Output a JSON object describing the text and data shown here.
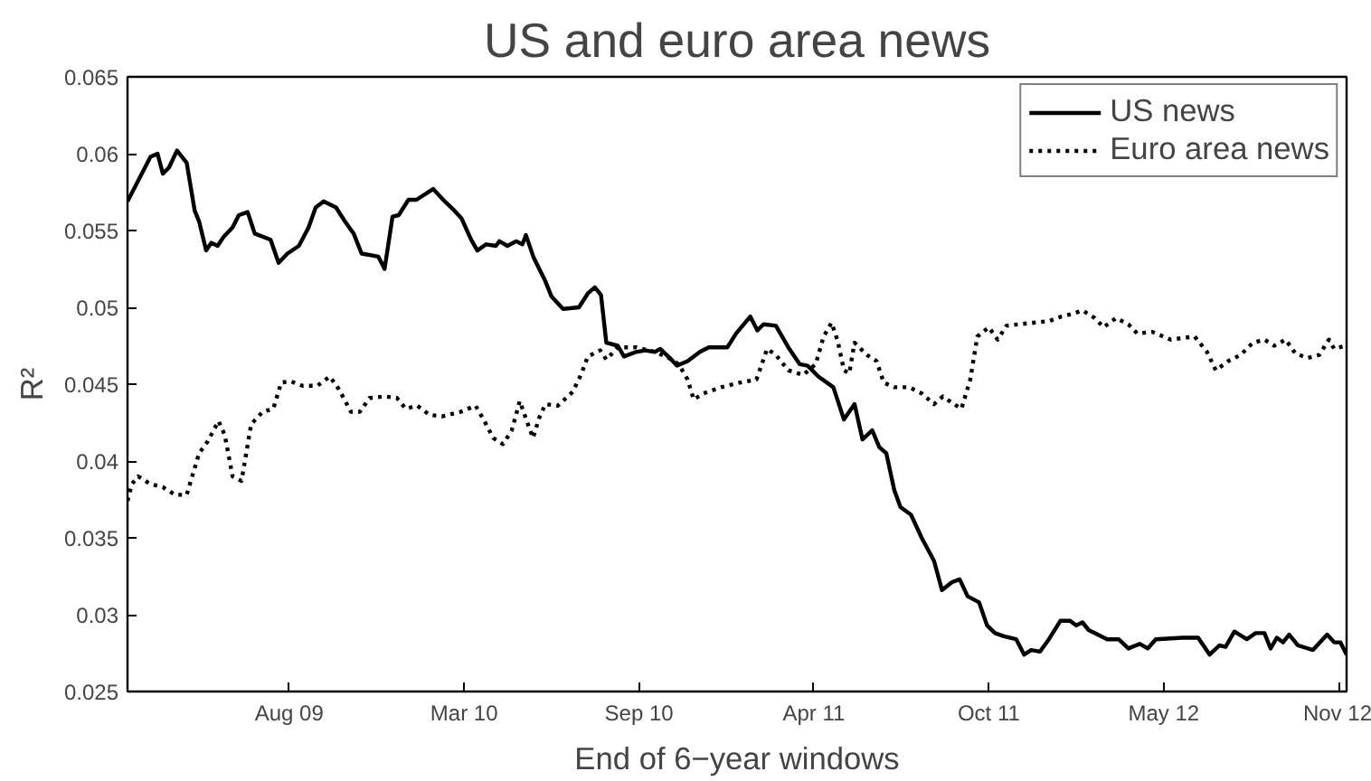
{
  "chart_data": {
    "type": "line",
    "title": "US and euro area news",
    "xlabel": "End of 6−year windows",
    "ylabel": "R²",
    "xlim": [
      "2009-02-13",
      "2012-11-24"
    ],
    "ylim": [
      0.025,
      0.065
    ],
    "xticks": [
      {
        "value": "2009-08-15",
        "label": "Aug 09"
      },
      {
        "value": "2010-03-01",
        "label": "Mar 10"
      },
      {
        "value": "2010-09-15",
        "label": "Sep 10"
      },
      {
        "value": "2011-04-01",
        "label": "Apr 11"
      },
      {
        "value": "2011-10-16",
        "label": "Oct 11"
      },
      {
        "value": "2012-05-01",
        "label": "May 12"
      },
      {
        "value": "2012-11-15",
        "label": "Nov 12"
      }
    ],
    "yticks": [
      0.025,
      0.03,
      0.035,
      0.04,
      0.045,
      0.05,
      0.055,
      0.06,
      0.065
    ],
    "grid": false,
    "legend": "top right",
    "marker": "none",
    "series": [
      {
        "name": "US news",
        "color": "#000000",
        "line_style": "solid",
        "x": [
          "2009-02-13",
          "2009-03-11",
          "2009-03-19",
          "2009-03-25",
          "2009-04-01",
          "2009-04-10",
          "2009-04-21",
          "2009-04-30",
          "2009-05-05",
          "2009-05-13",
          "2009-05-19",
          "2009-05-26",
          "2009-06-02",
          "2009-06-12",
          "2009-06-19",
          "2009-06-29",
          "2009-07-07",
          "2009-07-25",
          "2009-08-03",
          "2009-08-13",
          "2009-08-26",
          "2009-09-06",
          "2009-09-14",
          "2009-09-23",
          "2009-10-07",
          "2009-10-17",
          "2009-10-27",
          "2009-11-05",
          "2009-11-24",
          "2009-12-01",
          "2009-12-10",
          "2009-12-17",
          "2009-12-28",
          "2010-01-06",
          "2010-01-25",
          "2010-02-07",
          "2010-02-18",
          "2010-02-26",
          "2010-03-09",
          "2010-03-16",
          "2010-03-26",
          "2010-04-06",
          "2010-04-10",
          "2010-04-19",
          "2010-04-29",
          "2010-05-06",
          "2010-05-10",
          "2010-05-19",
          "2010-06-01",
          "2010-06-08",
          "2010-06-21",
          "2010-07-09",
          "2010-07-19",
          "2010-07-27",
          "2010-08-03",
          "2010-08-09",
          "2010-08-22",
          "2010-08-29",
          "2010-09-12",
          "2010-09-22",
          "2010-10-03",
          "2010-10-09",
          "2010-10-20",
          "2010-10-28",
          "2010-11-09",
          "2010-11-23",
          "2010-12-03",
          "2010-12-24",
          "2011-01-03",
          "2011-01-19",
          "2011-01-27",
          "2011-02-03",
          "2011-02-17",
          "2011-03-03",
          "2011-03-16",
          "2011-03-25",
          "2011-04-06",
          "2011-04-23",
          "2011-05-05",
          "2011-05-17",
          "2011-05-26",
          "2011-06-06",
          "2011-06-14",
          "2011-06-22",
          "2011-07-01",
          "2011-07-08",
          "2011-07-20",
          "2011-08-01",
          "2011-08-15",
          "2011-08-24",
          "2011-09-04",
          "2011-09-13",
          "2011-09-22",
          "2011-10-05",
          "2011-10-14",
          "2011-10-23",
          "2011-11-02",
          "2011-11-16",
          "2011-11-25",
          "2011-12-03",
          "2011-12-13",
          "2011-12-23",
          "2012-01-05",
          "2012-01-16",
          "2012-01-23",
          "2012-01-30",
          "2012-02-06",
          "2012-02-27",
          "2012-03-11",
          "2012-03-22",
          "2012-04-04",
          "2012-04-13",
          "2012-04-22",
          "2012-05-22",
          "2012-06-09",
          "2012-06-22",
          "2012-07-03",
          "2012-07-10",
          "2012-07-20",
          "2012-08-03",
          "2012-08-13",
          "2012-08-23",
          "2012-08-30",
          "2012-09-06",
          "2012-09-13",
          "2012-09-20",
          "2012-09-30",
          "2012-10-17",
          "2012-11-02",
          "2012-11-10",
          "2012-11-17",
          "2012-11-24"
        ],
        "values": [
          0.0569,
          0.0598,
          0.06,
          0.0587,
          0.0591,
          0.0602,
          0.0594,
          0.0563,
          0.0556,
          0.0537,
          0.0542,
          0.054,
          0.0546,
          0.0552,
          0.056,
          0.0562,
          0.0548,
          0.0544,
          0.0529,
          0.0535,
          0.054,
          0.0552,
          0.0565,
          0.0569,
          0.0565,
          0.0556,
          0.0548,
          0.0535,
          0.0533,
          0.0525,
          0.0559,
          0.056,
          0.057,
          0.057,
          0.0577,
          0.0569,
          0.0563,
          0.0558,
          0.0544,
          0.0537,
          0.0541,
          0.054,
          0.0543,
          0.054,
          0.0543,
          0.0541,
          0.0547,
          0.0532,
          0.0517,
          0.0507,
          0.0499,
          0.05,
          0.0509,
          0.0513,
          0.0508,
          0.0477,
          0.0475,
          0.0468,
          0.0471,
          0.0472,
          0.0471,
          0.0473,
          0.0467,
          0.0462,
          0.0465,
          0.0471,
          0.0474,
          0.0474,
          0.0483,
          0.0494,
          0.0485,
          0.0489,
          0.0488,
          0.0474,
          0.0463,
          0.0462,
          0.0455,
          0.0448,
          0.0427,
          0.0437,
          0.0414,
          0.042,
          0.0409,
          0.0405,
          0.0381,
          0.037,
          0.0365,
          0.035,
          0.0335,
          0.0316,
          0.0321,
          0.0323,
          0.0312,
          0.0308,
          0.0293,
          0.0288,
          0.0286,
          0.0284,
          0.0274,
          0.0277,
          0.0276,
          0.0284,
          0.0296,
          0.0296,
          0.0293,
          0.0295,
          0.029,
          0.0284,
          0.0284,
          0.0278,
          0.0281,
          0.0278,
          0.0284,
          0.0285,
          0.0285,
          0.0274,
          0.028,
          0.0279,
          0.0289,
          0.0284,
          0.0288,
          0.0288,
          0.0278,
          0.0285,
          0.0282,
          0.0287,
          0.028,
          0.0277,
          0.0287,
          0.0282,
          0.0282,
          0.0274
        ]
      },
      {
        "name": "Euro area news",
        "color": "#000000",
        "line_style": "dotted",
        "x": [
          "2009-02-13",
          "2009-02-18",
          "2009-02-25",
          "2009-03-11",
          "2009-03-25",
          "2009-04-08",
          "2009-04-21",
          "2009-05-05",
          "2009-05-15",
          "2009-05-27",
          "2009-06-03",
          "2009-06-12",
          "2009-06-22",
          "2009-07-03",
          "2009-07-16",
          "2009-07-28",
          "2009-08-06",
          "2009-08-16",
          "2009-08-30",
          "2009-09-16",
          "2009-09-30",
          "2009-10-10",
          "2009-10-24",
          "2009-11-03",
          "2009-11-14",
          "2009-12-01",
          "2009-12-15",
          "2009-12-25",
          "2010-01-07",
          "2010-01-21",
          "2010-02-04",
          "2010-02-25",
          "2010-03-14",
          "2010-03-24",
          "2010-04-03",
          "2010-04-14",
          "2010-04-24",
          "2010-05-03",
          "2010-05-11",
          "2010-05-18",
          "2010-05-25",
          "2010-06-01",
          "2010-06-15",
          "2010-07-02",
          "2010-07-12",
          "2010-07-19",
          "2010-08-02",
          "2010-08-09",
          "2010-08-22",
          "2010-09-12",
          "2010-10-03",
          "2010-10-16",
          "2010-10-30",
          "2010-11-09",
          "2010-11-16",
          "2010-11-27",
          "2010-12-17",
          "2011-01-07",
          "2011-01-26",
          "2011-02-07",
          "2011-02-17",
          "2011-03-03",
          "2011-03-20",
          "2011-04-03",
          "2011-04-12",
          "2011-04-21",
          "2011-04-28",
          "2011-05-05",
          "2011-05-11",
          "2011-05-17",
          "2011-05-31",
          "2011-06-11",
          "2011-06-19",
          "2011-07-01",
          "2011-07-18",
          "2011-08-01",
          "2011-08-15",
          "2011-08-25",
          "2011-09-04",
          "2011-09-15",
          "2011-09-25",
          "2011-10-03",
          "2011-10-16",
          "2011-10-26",
          "2011-11-05",
          "2011-11-19",
          "2011-12-06",
          "2011-12-23",
          "2012-01-06",
          "2012-01-20",
          "2012-01-30",
          "2012-02-13",
          "2012-02-23",
          "2012-03-08",
          "2012-03-22",
          "2012-04-01",
          "2012-04-18",
          "2012-05-09",
          "2012-05-22",
          "2012-06-05",
          "2012-06-19",
          "2012-06-29",
          "2012-07-13",
          "2012-07-27",
          "2012-08-10",
          "2012-08-23",
          "2012-09-03",
          "2012-09-16",
          "2012-09-27",
          "2012-10-11",
          "2012-10-24",
          "2012-11-04",
          "2012-11-10",
          "2012-11-23"
        ],
        "values": [
          0.0374,
          0.0385,
          0.039,
          0.0385,
          0.0383,
          0.0378,
          0.0378,
          0.0405,
          0.0413,
          0.0426,
          0.0417,
          0.039,
          0.0387,
          0.0424,
          0.0432,
          0.0434,
          0.0451,
          0.0452,
          0.0449,
          0.0449,
          0.0455,
          0.0447,
          0.0432,
          0.0432,
          0.0441,
          0.0442,
          0.0441,
          0.0434,
          0.0436,
          0.043,
          0.0429,
          0.0432,
          0.0436,
          0.0426,
          0.0415,
          0.0411,
          0.042,
          0.0439,
          0.0426,
          0.0415,
          0.0428,
          0.0437,
          0.0436,
          0.0445,
          0.0457,
          0.0468,
          0.0472,
          0.0466,
          0.0474,
          0.0474,
          0.0471,
          0.0468,
          0.0463,
          0.0453,
          0.044,
          0.0444,
          0.0448,
          0.0451,
          0.0453,
          0.0473,
          0.0469,
          0.0459,
          0.0456,
          0.0463,
          0.0481,
          0.049,
          0.0478,
          0.0459,
          0.0457,
          0.0477,
          0.0469,
          0.0465,
          0.0451,
          0.0448,
          0.0448,
          0.0444,
          0.0437,
          0.0442,
          0.0438,
          0.0434,
          0.0453,
          0.0481,
          0.0487,
          0.0479,
          0.0488,
          0.0489,
          0.049,
          0.0491,
          0.0494,
          0.0496,
          0.0498,
          0.0493,
          0.0487,
          0.0493,
          0.0489,
          0.0483,
          0.0484,
          0.0479,
          0.048,
          0.0481,
          0.0471,
          0.0459,
          0.0465,
          0.0469,
          0.0477,
          0.0479,
          0.0475,
          0.0479,
          0.047,
          0.0467,
          0.0469,
          0.0479,
          0.0473,
          0.0475
        ]
      }
    ]
  }
}
